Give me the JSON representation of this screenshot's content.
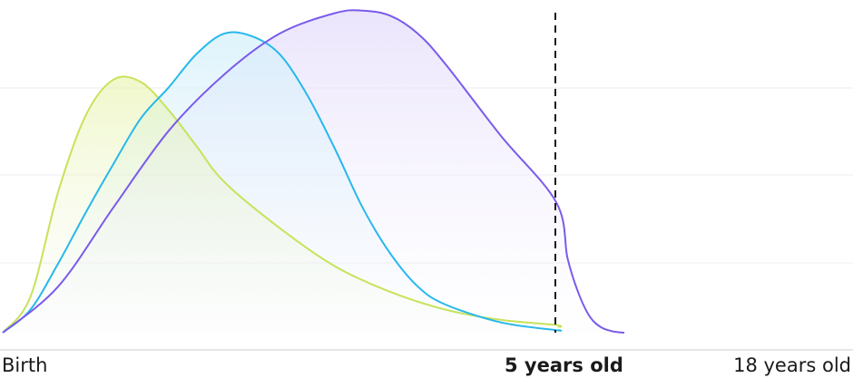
{
  "chart_data": {
    "type": "area",
    "title": "",
    "xlabel": "",
    "ylabel": "",
    "grid": true,
    "x_range_years": [
      0,
      18
    ],
    "tick_labels": [
      {
        "x_years": 0,
        "label": "Birth"
      },
      {
        "x_years": 5,
        "label": "5 years old",
        "emphasis": "bold"
      },
      {
        "x_years": 18,
        "label": "18 years old"
      }
    ],
    "reference_line": {
      "x_years": 5,
      "style": "dashed"
    },
    "series": [
      {
        "color": "#c7e35a",
        "x": [
          0,
          0.25,
          0.5,
          0.75,
          1,
          1.25,
          1.5,
          1.75,
          2,
          2.5,
          3,
          3.5,
          4,
          4.5,
          5,
          5.1
        ],
        "y": [
          0,
          0.14,
          0.55,
          0.85,
          0.99,
          0.98,
          0.87,
          0.73,
          0.59,
          0.41,
          0.26,
          0.16,
          0.09,
          0.05,
          0.03,
          0.02
        ]
      },
      {
        "color": "#26b8ec",
        "x": [
          0,
          0.25,
          0.5,
          0.75,
          1,
          1.25,
          1.5,
          1.75,
          2,
          2.25,
          2.5,
          2.75,
          3,
          3.25,
          3.5,
          3.75,
          4,
          4.5,
          5,
          5.1
        ],
        "y": [
          0,
          0.09,
          0.27,
          0.47,
          0.66,
          0.84,
          0.96,
          1.09,
          1.17,
          1.16,
          1.09,
          0.93,
          0.72,
          0.49,
          0.31,
          0.18,
          0.11,
          0.04,
          0.01,
          0.01
        ]
      },
      {
        "color": "#7b5bea",
        "x": [
          0,
          0.5,
          1,
          1.5,
          2,
          2.5,
          3,
          3.25,
          3.5,
          3.75,
          4,
          4.5,
          5,
          5.5,
          6,
          6.5,
          7,
          7.5,
          8
        ],
        "y": [
          0,
          0.18,
          0.49,
          0.79,
          1.01,
          1.17,
          1.25,
          1.26,
          1.24,
          1.17,
          1.05,
          0.77,
          0.51,
          0.29,
          0.15,
          0.06,
          0.02,
          0.005,
          0.0
        ]
      }
    ]
  }
}
